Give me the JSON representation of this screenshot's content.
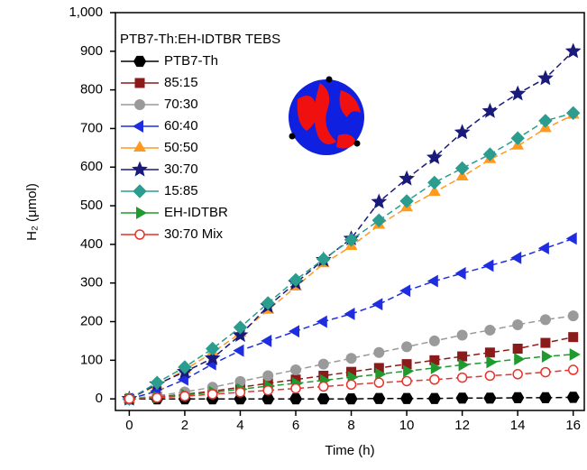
{
  "chart_data": {
    "type": "line",
    "legend_title": "PTB7-Th:EH-IDTBR TEBS",
    "xlabel": "Time (h)",
    "ylabel": "H₂ (μmol)",
    "x": [
      0,
      1,
      2,
      3,
      4,
      5,
      6,
      7,
      8,
      9,
      10,
      11,
      12,
      13,
      14,
      15,
      16
    ],
    "xlim": [
      -0.5,
      16.4
    ],
    "xticks": [
      0,
      2,
      4,
      6,
      8,
      10,
      12,
      14,
      16
    ],
    "ylim": [
      -30,
      1000
    ],
    "yticks": [
      0,
      100,
      200,
      300,
      400,
      500,
      600,
      700,
      800,
      900,
      {
        "value": 1000,
        "label": "1,000"
      }
    ],
    "legend": "upper left",
    "series": [
      {
        "name": "PTB7-Th",
        "color": "#000000",
        "marker": "hexagon",
        "values": [
          0,
          0,
          0,
          0,
          0,
          0,
          0,
          0,
          0,
          1,
          1,
          1,
          2,
          2,
          3,
          3,
          4
        ]
      },
      {
        "name": "85:15",
        "color": "#8b1a1a",
        "marker": "square",
        "values": [
          0,
          5,
          12,
          20,
          30,
          40,
          50,
          60,
          70,
          80,
          90,
          100,
          110,
          120,
          130,
          145,
          160
        ]
      },
      {
        "name": "70:30",
        "color": "#9a9a9a",
        "marker": "circle",
        "values": [
          0,
          8,
          18,
          30,
          45,
          60,
          75,
          90,
          105,
          120,
          135,
          150,
          165,
          178,
          192,
          205,
          215
        ]
      },
      {
        "name": "60:40",
        "color": "#1f2de0",
        "marker": "triangle-left",
        "values": [
          0,
          20,
          50,
          90,
          125,
          150,
          175,
          200,
          220,
          245,
          280,
          305,
          325,
          345,
          365,
          390,
          415
        ]
      },
      {
        "name": "50:50",
        "color": "#ff9a1f",
        "marker": "triangle-up",
        "values": [
          0,
          35,
          75,
          120,
          170,
          230,
          290,
          350,
          395,
          450,
          495,
          535,
          575,
          620,
          655,
          700,
          735
        ]
      },
      {
        "name": "30:70",
        "color": "#1a1a7a",
        "marker": "star",
        "values": [
          0,
          38,
          70,
          105,
          165,
          240,
          300,
          360,
          415,
          510,
          570,
          625,
          690,
          745,
          790,
          830,
          900
        ]
      },
      {
        "name": "15:85",
        "color": "#2a9d8f",
        "marker": "diamond",
        "values": [
          0,
          42,
          82,
          130,
          185,
          248,
          308,
          362,
          412,
          462,
          512,
          560,
          597,
          633,
          675,
          720,
          740
        ]
      },
      {
        "name": "EH-IDTBR",
        "color": "#1f9a2f",
        "marker": "triangle-right",
        "values": [
          0,
          4,
          10,
          17,
          25,
          33,
          40,
          48,
          56,
          64,
          72,
          80,
          88,
          95,
          103,
          110,
          115
        ]
      },
      {
        "name": "30:70 Mix",
        "color": "#e8322b",
        "marker": "open-circle",
        "values": [
          0,
          3,
          7,
          12,
          17,
          22,
          27,
          32,
          37,
          42,
          46,
          50,
          55,
          60,
          64,
          69,
          75
        ]
      }
    ]
  }
}
